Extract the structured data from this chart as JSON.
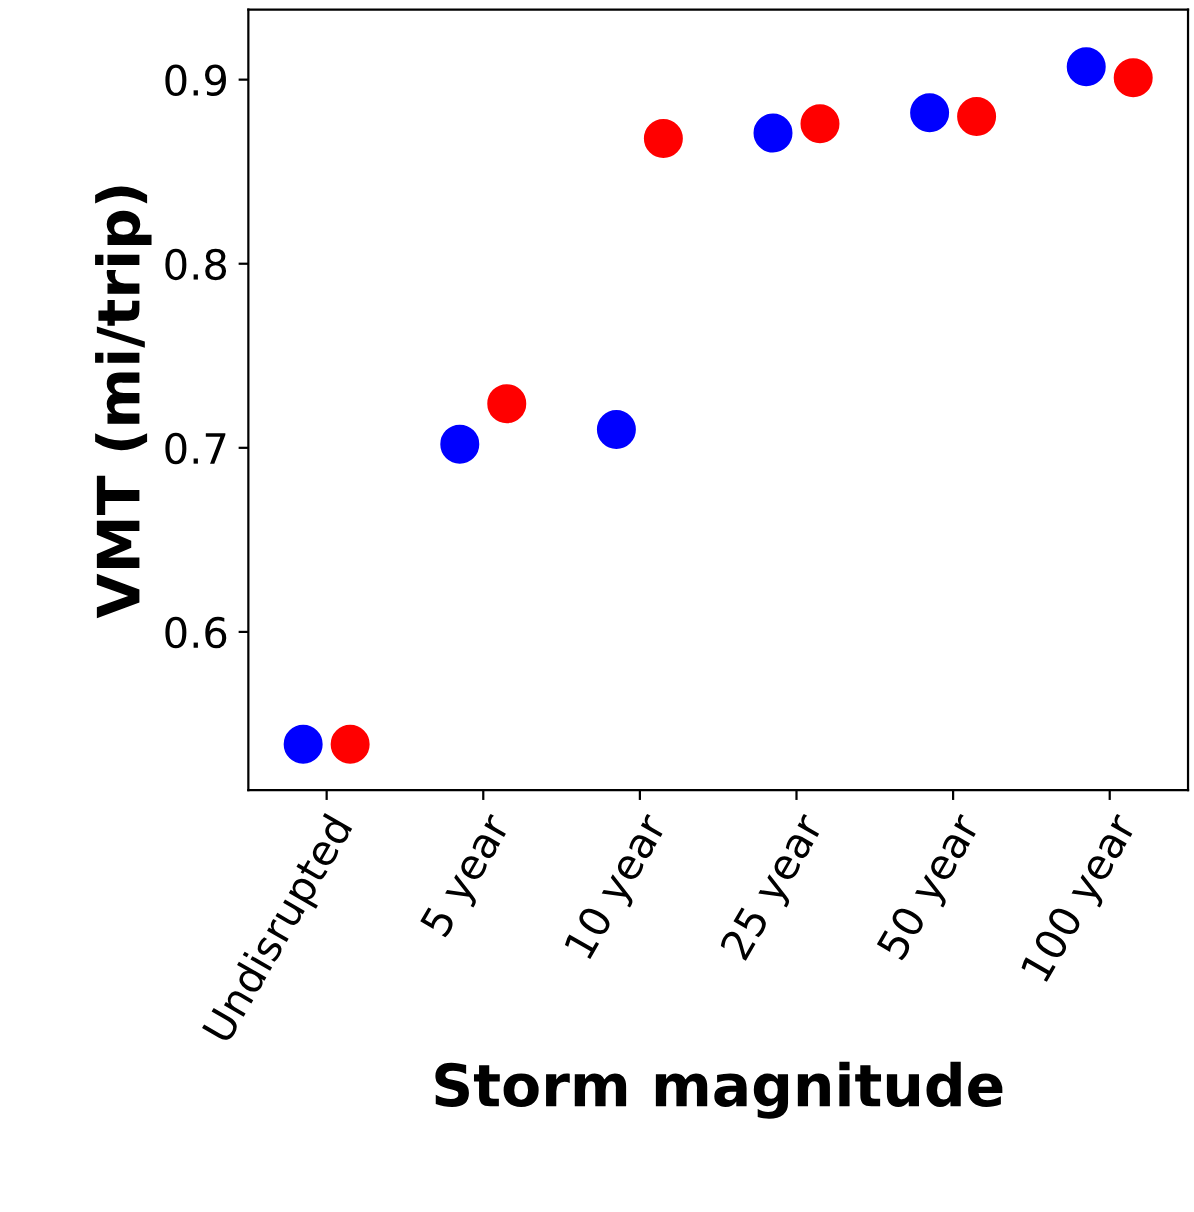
{
  "chart_data": {
    "type": "scatter",
    "xlabel": "Storm magnitude",
    "ylabel": "VMT (mi/trip)",
    "categories": [
      "Undisrupted",
      "5 year",
      "10 year",
      "25 year",
      "50 year",
      "100 year"
    ],
    "series": [
      {
        "color": "#0000ff",
        "values": [
          0.539,
          0.702,
          0.71,
          0.871,
          0.882,
          0.907
        ]
      },
      {
        "color": "#ff0000",
        "values": [
          0.539,
          0.724,
          0.868,
          0.876,
          0.88,
          0.901
        ]
      }
    ],
    "ylim": [
      0.514,
      0.938
    ],
    "yticks": [
      0.6,
      0.7,
      0.8,
      0.9
    ],
    "marker": "circle",
    "grid": false,
    "legend": false
  }
}
